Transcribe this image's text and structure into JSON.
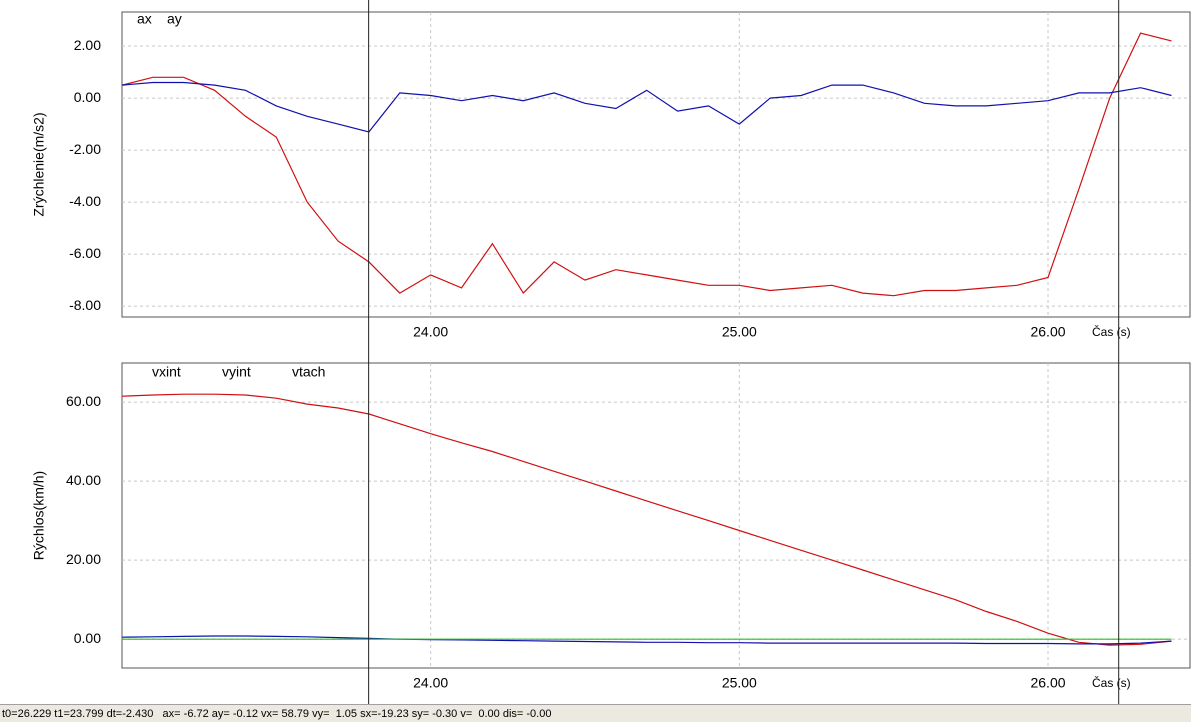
{
  "chart_data": [
    {
      "type": "line",
      "y_label": "Zrýchlenie(m/s2)",
      "x_label": "Čas (s)",
      "x": [
        23.0,
        23.1,
        23.2,
        23.3,
        23.4,
        23.5,
        23.6,
        23.7,
        23.8,
        23.9,
        24.0,
        24.1,
        24.2,
        24.3,
        24.4,
        24.5,
        24.6,
        24.7,
        24.8,
        24.9,
        25.0,
        25.1,
        25.2,
        25.3,
        25.4,
        25.5,
        25.6,
        25.7,
        25.8,
        25.9,
        26.0,
        26.1,
        26.2,
        26.3,
        26.4
      ],
      "series": [
        {
          "name": "ax",
          "color": "#d01010",
          "values": [
            0.5,
            0.8,
            0.8,
            0.3,
            -0.7,
            -1.5,
            -4.0,
            -5.5,
            -6.3,
            -7.5,
            -6.8,
            -7.3,
            -5.6,
            -7.5,
            -6.3,
            -7.0,
            -6.6,
            -6.8,
            -7.0,
            -7.2,
            -7.2,
            -7.4,
            -7.3,
            -7.2,
            -7.5,
            -7.6,
            -7.4,
            -7.4,
            -7.3,
            -7.2,
            -6.9,
            -3.5,
            0.0,
            2.5,
            2.2
          ]
        },
        {
          "name": "ay",
          "color": "#1010b0",
          "values": [
            0.5,
            0.6,
            0.6,
            0.5,
            0.3,
            -0.3,
            -0.7,
            -1.0,
            -1.3,
            0.2,
            0.1,
            -0.1,
            0.1,
            -0.1,
            0.2,
            -0.2,
            -0.4,
            0.3,
            -0.5,
            -0.3,
            -1.0,
            0.0,
            0.1,
            0.5,
            0.5,
            0.2,
            -0.2,
            -0.3,
            -0.3,
            -0.2,
            -0.1,
            0.2,
            0.2,
            0.4,
            0.1
          ]
        }
      ],
      "xlim": [
        23.0,
        26.46
      ],
      "ylim": [
        -8.42,
        3.31
      ],
      "xticks": [
        {
          "value": 24,
          "label": "24.00"
        },
        {
          "value": 25,
          "label": "25.00"
        },
        {
          "value": 26,
          "label": "26.00"
        }
      ],
      "yticks": [
        {
          "value": 2,
          "label": "2.00"
        },
        {
          "value": 0,
          "label": "0.00"
        },
        {
          "value": -2,
          "label": "-2.00"
        },
        {
          "value": -4,
          "label": "-4.00"
        },
        {
          "value": -6,
          "label": "-6.00"
        },
        {
          "value": -8,
          "label": "-8.00"
        }
      ],
      "grid": true
    },
    {
      "type": "line",
      "y_label": "Rýchlos(km/h)",
      "x_label": "Čas (s)",
      "x": [
        23.0,
        23.1,
        23.2,
        23.3,
        23.4,
        23.5,
        23.6,
        23.7,
        23.8,
        23.9,
        24.0,
        24.1,
        24.2,
        24.3,
        24.4,
        24.5,
        24.6,
        24.7,
        24.8,
        24.9,
        25.0,
        25.1,
        25.2,
        25.3,
        25.4,
        25.5,
        25.6,
        25.7,
        25.8,
        25.9,
        26.0,
        26.1,
        26.2,
        26.3,
        26.4
      ],
      "series": [
        {
          "name": "vxint",
          "color": "#d01010",
          "values": [
            61.5,
            61.8,
            62,
            62,
            61.8,
            61,
            59.5,
            58.5,
            57,
            54.5,
            52,
            49.7,
            47.5,
            45,
            42.5,
            40,
            37.5,
            35,
            32.5,
            30,
            27.5,
            25,
            22.5,
            20,
            17.5,
            15,
            12.5,
            10,
            7,
            4.5,
            1.5,
            -0.8,
            -1.5,
            -1.3,
            -0.5
          ]
        },
        {
          "name": "vyint",
          "color": "#1010b0",
          "values": [
            0.5,
            0.6,
            0.7,
            0.8,
            0.8,
            0.7,
            0.6,
            0.4,
            0.2,
            0.0,
            -0.1,
            -0.2,
            -0.3,
            -0.4,
            -0.5,
            -0.6,
            -0.7,
            -0.8,
            -0.8,
            -0.9,
            -0.9,
            -1.0,
            -1.0,
            -1.0,
            -1.0,
            -1.0,
            -1.0,
            -1.0,
            -1.1,
            -1.1,
            -1.1,
            -1.2,
            -1.2,
            -1.0,
            -0.5
          ]
        },
        {
          "name": "vtach",
          "color": "#20c020",
          "values": [
            0,
            0,
            0,
            0,
            0,
            0,
            0,
            0,
            0,
            0,
            0,
            0,
            0,
            0,
            0,
            0,
            0,
            0,
            0,
            0,
            0,
            0,
            0,
            0,
            0,
            0,
            0,
            0,
            0,
            0,
            0,
            0,
            0,
            0,
            0
          ]
        }
      ],
      "xlim": [
        23.0,
        26.46
      ],
      "ylim": [
        -7.3,
        69.9
      ],
      "xticks": [
        {
          "value": 24,
          "label": "24.00"
        },
        {
          "value": 25,
          "label": "25.00"
        },
        {
          "value": 26,
          "label": "26.00"
        }
      ],
      "yticks": [
        {
          "value": 60,
          "label": "60.00"
        },
        {
          "value": 40,
          "label": "40.00"
        },
        {
          "value": 20,
          "label": "20.00"
        },
        {
          "value": 0,
          "label": "0.00"
        }
      ],
      "grid": true
    }
  ],
  "cursors": [
    23.799,
    26.229
  ],
  "status_bar": {
    "text": "t0=26.229 t1=23.799 dt=-2.430   ax= -6.72 ay= -0.12 vx= 58.79 vy=  1.05 sx=-19.23 sy= -0.30 v=  0.00 dis= -0.00"
  }
}
